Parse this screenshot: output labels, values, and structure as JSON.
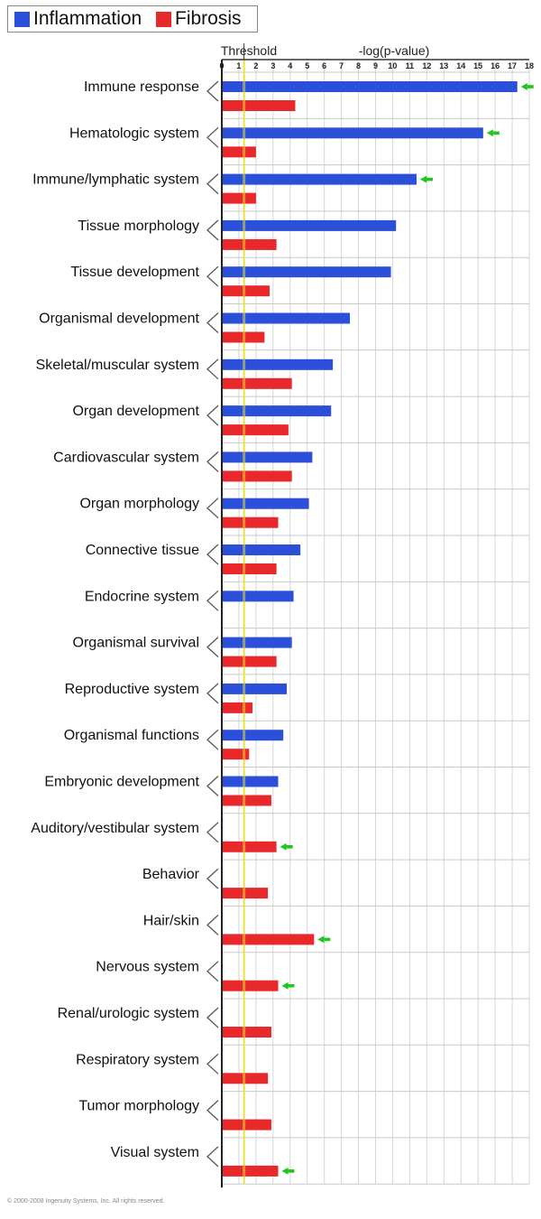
{
  "legend": {
    "items": [
      {
        "label": "Inflammation",
        "color": "#2b4fd8"
      },
      {
        "label": "Fibrosis",
        "color": "#e8282b"
      }
    ]
  },
  "chart_data": {
    "type": "bar",
    "orientation": "horizontal",
    "title": "",
    "xlabel": "-log(p-value)",
    "threshold_label": "Threshold",
    "threshold_value": 1.3,
    "xlim": [
      0,
      18
    ],
    "xticks": [
      0,
      1,
      2,
      3,
      4,
      5,
      6,
      7,
      8,
      9,
      10,
      11,
      12,
      13,
      14,
      15,
      16,
      17,
      18
    ],
    "grid": true,
    "legend_position": "top-left",
    "categories": [
      "Immune response",
      "Hematologic system",
      "Immune/lymphatic system",
      "Tissue morphology",
      "Tissue development",
      "Organismal development",
      "Skeletal/muscular system",
      "Organ development",
      "Cardiovascular system",
      "Organ morphology",
      "Connective tissue",
      "Endocrine system",
      "Organismal survival",
      "Reproductive system",
      "Organismal functions",
      "Embryonic development",
      "Auditory/vestibular system",
      "Behavior",
      "Hair/skin",
      "Nervous system",
      "Renal/urologic system",
      "Respiratory system",
      "Tumor morphology",
      "Visual system"
    ],
    "series": [
      {
        "name": "Inflammation",
        "color": "#2b4fd8",
        "values": [
          17.3,
          15.3,
          11.4,
          10.2,
          9.9,
          7.5,
          6.5,
          6.4,
          5.3,
          5.1,
          4.6,
          4.2,
          4.1,
          3.8,
          3.6,
          3.3,
          null,
          null,
          null,
          null,
          null,
          null,
          null,
          null
        ]
      },
      {
        "name": "Fibrosis",
        "color": "#e8282b",
        "values": [
          4.3,
          2.0,
          2.0,
          3.2,
          2.8,
          2.5,
          4.1,
          3.9,
          4.1,
          3.3,
          3.2,
          null,
          3.2,
          1.8,
          1.6,
          2.9,
          3.2,
          2.7,
          5.4,
          3.3,
          2.9,
          2.7,
          2.9,
          3.3
        ]
      }
    ],
    "highlight_arrows": [
      {
        "category": "Immune response",
        "series": "Inflammation"
      },
      {
        "category": "Hematologic system",
        "series": "Inflammation"
      },
      {
        "category": "Immune/lymphatic system",
        "series": "Inflammation"
      },
      {
        "category": "Auditory/vestibular system",
        "series": "Fibrosis"
      },
      {
        "category": "Hair/skin",
        "series": "Fibrosis"
      },
      {
        "category": "Nervous system",
        "series": "Fibrosis"
      },
      {
        "category": "Visual system",
        "series": "Fibrosis"
      }
    ],
    "arrow_color": "#22c41e",
    "threshold_color": "#e8e23a"
  },
  "footer": "© 2000-2008 Ingenuity Systems, Inc. All rights reserved."
}
